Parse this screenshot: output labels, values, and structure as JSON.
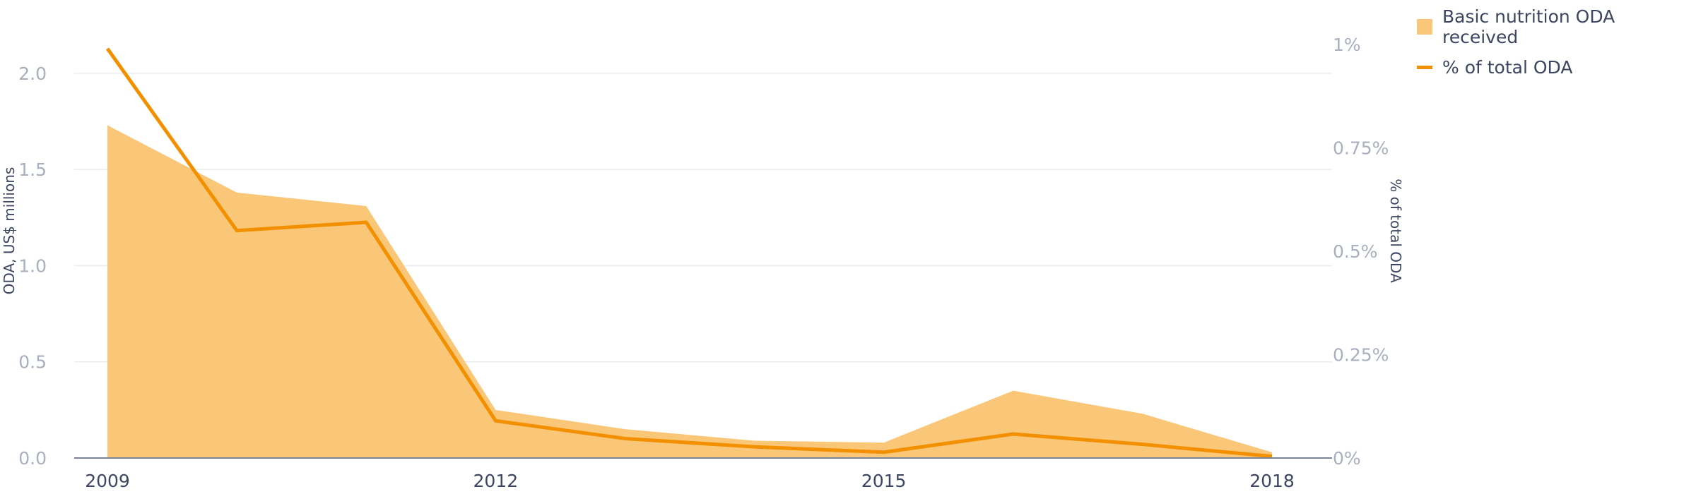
{
  "chart_data": {
    "type": "area",
    "x": [
      2009,
      2010,
      2011,
      2012,
      2013,
      2014,
      2015,
      2016,
      2017,
      2018
    ],
    "x_ticks": [
      "2009",
      "2012",
      "2015",
      "2018"
    ],
    "series": [
      {
        "name": "Basic nutrition ODA received",
        "axis": "left",
        "type": "area",
        "color": "#fac779",
        "values": [
          1.73,
          1.38,
          1.31,
          0.25,
          0.15,
          0.09,
          0.08,
          0.35,
          0.23,
          0.03
        ]
      },
      {
        "name": "% of total ODA",
        "axis": "right",
        "type": "line",
        "color": "#f39000",
        "values": [
          0.99,
          0.55,
          0.57,
          0.09,
          0.047,
          0.027,
          0.014,
          0.058,
          0.033,
          0.004
        ]
      }
    ],
    "y_left": {
      "label": "ODA, US$ millions",
      "ylim": [
        0,
        2.15
      ],
      "ticks": [
        "0.0",
        "0.5",
        "1.0",
        "1.5",
        "2.0"
      ],
      "tick_values": [
        0,
        0.5,
        1.0,
        1.5,
        2.0
      ]
    },
    "y_right": {
      "label": "% of total ODA",
      "ylim": [
        0,
        1.0
      ],
      "ticks": [
        "0%",
        "0.25%",
        "0.5%",
        "0.75%",
        "1%"
      ],
      "tick_values": [
        0,
        0.25,
        0.5,
        0.75,
        1.0
      ]
    },
    "grid": true,
    "legend_position": "top-right"
  },
  "legend": {
    "items": [
      {
        "label": "Basic nutrition ODA received",
        "color": "#fac779",
        "icon": "area-swatch"
      },
      {
        "label": "% of total ODA",
        "color": "#f39000",
        "icon": "line-swatch"
      }
    ]
  }
}
